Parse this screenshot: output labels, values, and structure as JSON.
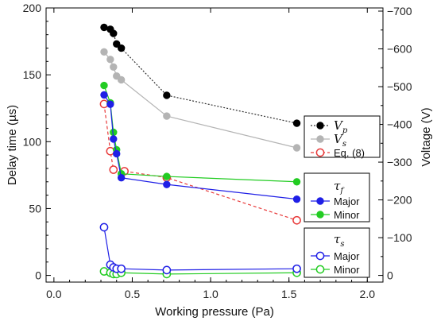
{
  "chart_data": {
    "type": "scatter",
    "xlabel": "Working pressure (Pa)",
    "ylabel_left": "Delay time (µs)",
    "ylabel_right": "Voltage (V)",
    "xlim": [
      -0.05,
      2.1
    ],
    "ylim_left": [
      -5,
      200
    ],
    "ylim_right": [
      0,
      -700
    ],
    "x_ticks": [
      "0.0",
      "0.5",
      "1.0",
      "1.5",
      "2.0"
    ],
    "x_tick_values": [
      0,
      0.5,
      1.0,
      1.5,
      2.0
    ],
    "y_left_ticks": [
      "0",
      "50",
      "100",
      "150",
      "200"
    ],
    "y_left_tick_values": [
      0,
      50,
      100,
      150,
      200
    ],
    "y_right_ticks": [
      "0",
      "−100",
      "−200",
      "−300",
      "−400",
      "−500",
      "−600",
      "−700"
    ],
    "y_right_tick_values": [
      0,
      -100,
      -200,
      -300,
      -400,
      -500,
      -600,
      -700
    ],
    "grid": false,
    "legend_placement": "right",
    "voltage_legend": [
      {
        "symbol": "V",
        "subscript": "p",
        "series": "Vp"
      },
      {
        "symbol": "V",
        "subscript": "s",
        "series": "Vs"
      },
      {
        "label": "Eq. (8)",
        "series": "Eq8"
      }
    ],
    "tau_f_legend": {
      "symbol": "τ",
      "subscript": "f",
      "items": [
        {
          "label": "Major",
          "series": "tf_major"
        },
        {
          "label": "Minor",
          "series": "tf_minor"
        }
      ]
    },
    "tau_s_legend": {
      "symbol": "τ",
      "subscript": "s",
      "items": [
        {
          "label": "Major",
          "series": "ts_major"
        },
        {
          "label": "Minor",
          "series": "ts_minor"
        }
      ]
    },
    "series": [
      {
        "key": "Vp",
        "axis": "right",
        "style": "black-filled-dotted",
        "color": "#000000",
        "x": [
          0.32,
          0.36,
          0.38,
          0.4,
          0.43,
          0.72,
          1.55
        ],
        "y": [
          -657,
          -652,
          -641,
          -613,
          -602,
          -477,
          -403
        ]
      },
      {
        "key": "Vs",
        "axis": "right",
        "style": "gray-filled-solid",
        "color": "#b4b4b4",
        "x": [
          0.32,
          0.36,
          0.38,
          0.4,
          0.43,
          0.72,
          1.55
        ],
        "y": [
          -592,
          -572,
          -552,
          -528,
          -518,
          -422,
          -338
        ]
      },
      {
        "key": "Eq8",
        "axis": "right",
        "style": "red-open-dashed",
        "color": "#e83a3a",
        "x": [
          0.32,
          0.36,
          0.38,
          0.45,
          0.72,
          1.55
        ],
        "y": [
          -454,
          -329,
          -280,
          -276,
          -259,
          -146
        ]
      },
      {
        "key": "tf_major",
        "axis": "left",
        "style": "blue-filled",
        "color": "#1f1fe6",
        "x": [
          0.32,
          0.36,
          0.38,
          0.4,
          0.43,
          0.72,
          1.55
        ],
        "y": [
          135,
          128,
          102,
          91,
          73,
          68,
          57
        ]
      },
      {
        "key": "tf_minor",
        "axis": "left",
        "style": "green-filled",
        "color": "#22cc22",
        "x": [
          0.32,
          0.36,
          0.38,
          0.4,
          0.43,
          0.72,
          1.55
        ],
        "y": [
          142,
          129,
          107,
          94,
          76,
          74,
          70
        ]
      },
      {
        "key": "ts_major",
        "axis": "left",
        "style": "blue-open",
        "color": "#1f1fe6",
        "x": [
          0.32,
          0.36,
          0.38,
          0.4,
          0.43,
          0.72,
          1.55
        ],
        "y": [
          36,
          8,
          6,
          5,
          5,
          4,
          5
        ]
      },
      {
        "key": "ts_minor",
        "axis": "left",
        "style": "green-open",
        "color": "#22cc22",
        "x": [
          0.32,
          0.36,
          0.38,
          0.4,
          0.43,
          0.72,
          1.55
        ],
        "y": [
          3,
          2,
          1,
          1,
          2,
          1,
          2
        ]
      }
    ]
  }
}
